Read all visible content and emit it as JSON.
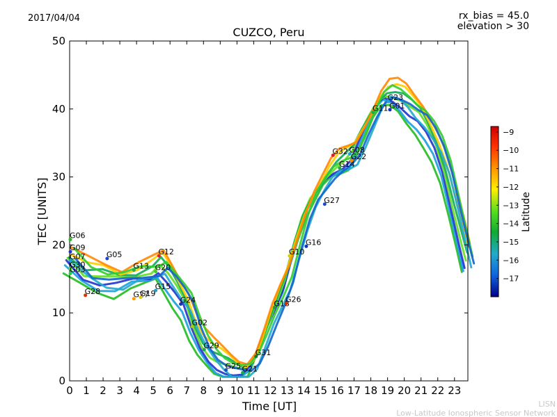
{
  "header": {
    "date": "2017/04/04",
    "rx_bias": "rx_bias = 45.0",
    "elevation": "elevation > 30"
  },
  "footer": {
    "line1": "LISN",
    "line2": "Low-Latitude Ionospheric Sensor Network"
  },
  "chart_data": {
    "type": "scatter",
    "title": "CUZCO, Peru",
    "xlabel": "Time [UT]",
    "ylabel": "TEC [UNITS]",
    "xlim": [
      0,
      23.8
    ],
    "ylim": [
      0,
      50
    ],
    "x_ticks": [
      0,
      1,
      2,
      3,
      4,
      5,
      6,
      7,
      8,
      9,
      10,
      11,
      12,
      13,
      14,
      15,
      16,
      17,
      18,
      19,
      20,
      21,
      22,
      23
    ],
    "y_ticks": [
      0,
      10,
      20,
      30,
      40,
      50
    ],
    "grid": false,
    "colorbar": {
      "label": "Latitude",
      "range": [
        -18,
        -8.7
      ],
      "ticks": [
        -9,
        -10,
        -11,
        -12,
        -13,
        -14,
        -15,
        -16,
        -17
      ]
    },
    "series": [
      {
        "name": "G06",
        "x": 0.0,
        "y": 21.0,
        "color": "#22bb22"
      },
      {
        "name": "G09",
        "x": 0.0,
        "y": 19.2,
        "color": "#2233cc"
      },
      {
        "name": "G07",
        "x": 0.0,
        "y": 17.9,
        "color": "#1aa0dd"
      },
      {
        "name": "G30",
        "x": 0.0,
        "y": 16.7,
        "color": "#66dd22"
      },
      {
        "name": "G03",
        "x": 0.0,
        "y": 16.0,
        "color": "#22cc44"
      },
      {
        "name": "G28",
        "x": 0.9,
        "y": 12.8,
        "color": "#dd3300"
      },
      {
        "name": "G05",
        "x": 2.2,
        "y": 18.2,
        "color": "#2244cc"
      },
      {
        "name": "G13",
        "x": 3.8,
        "y": 16.5,
        "color": "#33aa55"
      },
      {
        "name": "G27",
        "x": 3.8,
        "y": 12.3,
        "color": "#ff9900"
      },
      {
        "name": "G19",
        "x": 4.2,
        "y": 12.5,
        "color": "#ddcc00"
      },
      {
        "name": "G20",
        "x": 5.1,
        "y": 16.3,
        "color": "#44cc22"
      },
      {
        "name": "G12",
        "x": 5.3,
        "y": 18.6,
        "color": "#dd2222"
      },
      {
        "name": "G15",
        "x": 5.1,
        "y": 13.5,
        "color": "#1aa0cc"
      },
      {
        "name": "G24",
        "x": 6.6,
        "y": 11.5,
        "color": "#1133bb"
      },
      {
        "name": "G02",
        "x": 7.3,
        "y": 8.2,
        "color": "#aacc00"
      },
      {
        "name": "G29",
        "x": 8.0,
        "y": 4.8,
        "color": "#22aa44"
      },
      {
        "name": "G25",
        "x": 9.3,
        "y": 1.8,
        "color": "#1155bb"
      },
      {
        "name": "G21",
        "x": 10.3,
        "y": 1.4,
        "color": "#11aa55"
      },
      {
        "name": "G31",
        "x": 11.1,
        "y": 3.8,
        "color": "#117733"
      },
      {
        "name": "G18",
        "x": 12.2,
        "y": 11.0,
        "color": "#229944"
      },
      {
        "name": "G26",
        "x": 12.9,
        "y": 11.6,
        "color": "#cc3300"
      },
      {
        "name": "G10",
        "x": 13.1,
        "y": 18.6,
        "color": "#ddcc00"
      },
      {
        "name": "G16",
        "x": 14.1,
        "y": 20.0,
        "color": "#1133bb"
      },
      {
        "name": "G27",
        "x": 15.2,
        "y": 26.2,
        "color": "#2244cc"
      },
      {
        "name": "G32",
        "x": 15.7,
        "y": 33.4,
        "color": "#dd2222"
      },
      {
        "name": "G14",
        "x": 16.1,
        "y": 31.5,
        "color": "#22aa44"
      },
      {
        "name": "G08",
        "x": 16.7,
        "y": 33.6,
        "color": "#1aa0dd"
      },
      {
        "name": "G22",
        "x": 16.8,
        "y": 32.6,
        "color": "#ff8800"
      },
      {
        "name": "G11",
        "x": 18.1,
        "y": 39.7,
        "color": "#22aa44"
      },
      {
        "name": "G01",
        "x": 19.1,
        "y": 40.1,
        "color": "#1133bb"
      },
      {
        "name": "G23",
        "x": 19.0,
        "y": 41.3,
        "color": "#1aa0dd"
      }
    ]
  }
}
